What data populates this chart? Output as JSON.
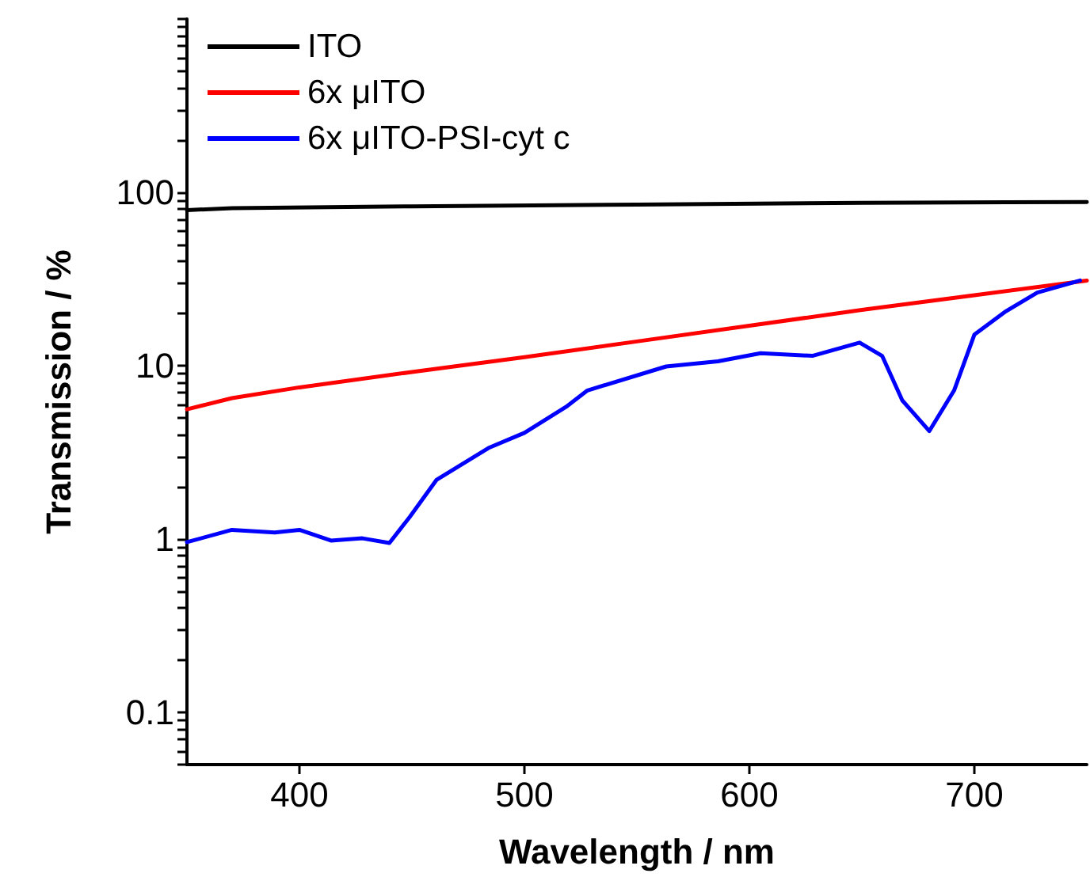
{
  "chart_data": {
    "type": "line",
    "xlabel": "Wavelength / nm",
    "ylabel": "Transmission / %",
    "xlim": [
      350,
      750
    ],
    "xticks": [
      400,
      500,
      600,
      700
    ],
    "ylim": [
      0.05,
      1000
    ],
    "yticks": [
      0.1,
      1,
      10,
      100
    ],
    "log": "y",
    "grid": false,
    "legend": "top left",
    "marker": "none",
    "line_style": "solid",
    "series": [
      {
        "name": "ITO",
        "color": "#000000",
        "x": [
          350,
          370,
          450,
          550,
          650,
          750
        ],
        "values": [
          79,
          81,
          83,
          85,
          87,
          88
        ]
      },
      {
        "name": "6x μITO",
        "color": "#ff0000",
        "x": [
          350,
          370,
          400,
          450,
          500,
          550,
          600,
          650,
          700,
          750
        ],
        "values": [
          5.6,
          6.5,
          7.5,
          9.2,
          11.2,
          13.8,
          17,
          21,
          25.5,
          31
        ]
      },
      {
        "name": "6x μITO-PSI-cyt c",
        "color": "#0000ff",
        "x": [
          350,
          370,
          389,
          400,
          414,
          428,
          440,
          449,
          461,
          484,
          500,
          519,
          528,
          563,
          586,
          605,
          628,
          649,
          659,
          668,
          680,
          691,
          700,
          714,
          728,
          747
        ],
        "values": [
          0.96,
          1.13,
          1.09,
          1.13,
          0.98,
          1.01,
          0.95,
          1.34,
          2.2,
          3.35,
          4.1,
          5.85,
          7.2,
          9.9,
          10.6,
          11.8,
          11.4,
          13.6,
          11.4,
          6.3,
          4.2,
          7.2,
          15.1,
          20.6,
          26.4,
          31
        ]
      }
    ]
  }
}
